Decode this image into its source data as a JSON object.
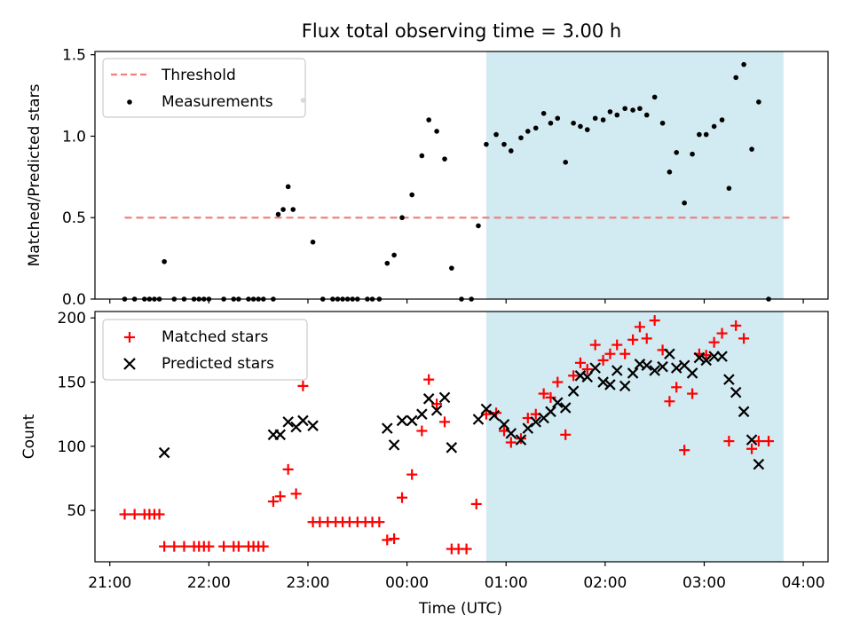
{
  "title": "Flux total observing time = 3.00 h",
  "colors": {
    "threshold": "#f08080",
    "measurement": "#000000",
    "matched": "#ff0000",
    "predicted": "#000000",
    "highlight": "#add8e6"
  },
  "chart_data": [
    {
      "type": "scatter",
      "ylabel": "Matched/Predicted stars",
      "xlabel": "",
      "xlim": [
        20.85,
        28.25
      ],
      "ylim": [
        0,
        1.52
      ],
      "yticks": [
        0.0,
        0.5,
        1.0,
        1.5
      ],
      "ytick_labels": [
        "0.0",
        "0.5",
        "1.0",
        "1.5"
      ],
      "highlight_span": [
        24.8,
        27.8
      ],
      "legend": {
        "position": "upper left",
        "entries": [
          "Threshold",
          "Measurements"
        ]
      },
      "threshold": {
        "name": "Threshold",
        "value": 0.5,
        "x_range": [
          21.15,
          27.9
        ]
      },
      "series": [
        {
          "name": "Measurements",
          "marker": "dot",
          "points": [
            [
              21.15,
              0
            ],
            [
              21.25,
              0
            ],
            [
              21.35,
              0
            ],
            [
              21.4,
              0
            ],
            [
              21.45,
              0
            ],
            [
              21.5,
              0
            ],
            [
              21.55,
              0.23
            ],
            [
              21.65,
              0
            ],
            [
              21.75,
              0
            ],
            [
              21.85,
              0
            ],
            [
              21.9,
              0
            ],
            [
              21.95,
              0
            ],
            [
              22.0,
              0
            ],
            [
              22.15,
              0
            ],
            [
              22.25,
              0
            ],
            [
              22.3,
              0
            ],
            [
              22.4,
              0
            ],
            [
              22.45,
              0
            ],
            [
              22.5,
              0
            ],
            [
              22.55,
              0
            ],
            [
              22.65,
              0
            ],
            [
              22.7,
              0.52
            ],
            [
              22.75,
              0.55
            ],
            [
              22.8,
              0.69
            ],
            [
              22.85,
              0.55
            ],
            [
              22.95,
              1.22
            ],
            [
              23.05,
              0.35
            ],
            [
              23.15,
              0
            ],
            [
              23.25,
              0
            ],
            [
              23.3,
              0
            ],
            [
              23.35,
              0
            ],
            [
              23.4,
              0
            ],
            [
              23.45,
              0
            ],
            [
              23.5,
              0
            ],
            [
              23.6,
              0
            ],
            [
              23.65,
              0
            ],
            [
              23.72,
              0
            ],
            [
              23.8,
              0.22
            ],
            [
              23.87,
              0.27
            ],
            [
              23.95,
              0.5
            ],
            [
              24.05,
              0.64
            ],
            [
              24.15,
              0.88
            ],
            [
              24.22,
              1.1
            ],
            [
              24.3,
              1.03
            ],
            [
              24.38,
              0.86
            ],
            [
              24.45,
              0.19
            ],
            [
              24.55,
              0
            ],
            [
              24.65,
              0
            ],
            [
              24.72,
              0.45
            ],
            [
              24.8,
              0.95
            ],
            [
              24.9,
              1.01
            ],
            [
              24.98,
              0.95
            ],
            [
              25.05,
              0.91
            ],
            [
              25.15,
              0.99
            ],
            [
              25.22,
              1.03
            ],
            [
              25.3,
              1.05
            ],
            [
              25.38,
              1.14
            ],
            [
              25.45,
              1.08
            ],
            [
              25.52,
              1.11
            ],
            [
              25.6,
              0.84
            ],
            [
              25.68,
              1.08
            ],
            [
              25.75,
              1.06
            ],
            [
              25.82,
              1.04
            ],
            [
              25.9,
              1.11
            ],
            [
              25.98,
              1.1
            ],
            [
              26.05,
              1.15
            ],
            [
              26.12,
              1.13
            ],
            [
              26.2,
              1.17
            ],
            [
              26.28,
              1.16
            ],
            [
              26.35,
              1.17
            ],
            [
              26.42,
              1.13
            ],
            [
              26.5,
              1.24
            ],
            [
              26.58,
              1.08
            ],
            [
              26.65,
              0.78
            ],
            [
              26.72,
              0.9
            ],
            [
              26.8,
              0.59
            ],
            [
              26.88,
              0.89
            ],
            [
              26.95,
              1.01
            ],
            [
              27.02,
              1.01
            ],
            [
              27.1,
              1.06
            ],
            [
              27.18,
              1.1
            ],
            [
              27.25,
              0.68
            ],
            [
              27.32,
              1.36
            ],
            [
              27.4,
              1.44
            ],
            [
              27.48,
              0.92
            ],
            [
              27.55,
              1.21
            ],
            [
              27.65,
              0.0
            ]
          ]
        }
      ]
    },
    {
      "type": "scatter",
      "ylabel": "Count",
      "xlabel": "Time (UTC)",
      "xlim": [
        20.85,
        28.25
      ],
      "ylim": [
        10,
        205
      ],
      "yticks": [
        50,
        100,
        150,
        200
      ],
      "ytick_labels": [
        "50",
        "100",
        "150",
        "200"
      ],
      "xticks": [
        21,
        22,
        23,
        24,
        25,
        26,
        27,
        28
      ],
      "xtick_labels": [
        "21:00",
        "22:00",
        "23:00",
        "00:00",
        "01:00",
        "02:00",
        "03:00",
        "04:00"
      ],
      "highlight_span": [
        24.8,
        27.8
      ],
      "legend": {
        "position": "upper left",
        "entries": [
          "Matched stars",
          "Predicted stars"
        ]
      },
      "series": [
        {
          "name": "Matched stars",
          "marker": "plus",
          "points": [
            [
              21.15,
              47
            ],
            [
              21.25,
              47
            ],
            [
              21.35,
              47
            ],
            [
              21.4,
              47
            ],
            [
              21.45,
              47
            ],
            [
              21.5,
              47
            ],
            [
              21.55,
              22
            ],
            [
              21.65,
              22
            ],
            [
              21.75,
              22
            ],
            [
              21.85,
              22
            ],
            [
              21.9,
              22
            ],
            [
              21.95,
              22
            ],
            [
              22.0,
              22
            ],
            [
              22.15,
              22
            ],
            [
              22.25,
              22
            ],
            [
              22.3,
              22
            ],
            [
              22.4,
              22
            ],
            [
              22.45,
              22
            ],
            [
              22.5,
              22
            ],
            [
              22.55,
              22
            ],
            [
              22.65,
              57
            ],
            [
              22.72,
              61
            ],
            [
              22.8,
              82
            ],
            [
              22.88,
              63
            ],
            [
              22.95,
              147
            ],
            [
              23.05,
              41
            ],
            [
              23.12,
              41
            ],
            [
              23.2,
              41
            ],
            [
              23.28,
              41
            ],
            [
              23.35,
              41
            ],
            [
              23.42,
              41
            ],
            [
              23.5,
              41
            ],
            [
              23.58,
              41
            ],
            [
              23.65,
              41
            ],
            [
              23.72,
              41
            ],
            [
              23.8,
              27
            ],
            [
              23.87,
              28
            ],
            [
              23.95,
              60
            ],
            [
              24.05,
              78
            ],
            [
              24.15,
              112
            ],
            [
              24.22,
              152
            ],
            [
              24.3,
              133
            ],
            [
              24.38,
              119
            ],
            [
              24.45,
              20
            ],
            [
              24.52,
              20
            ],
            [
              24.6,
              20
            ],
            [
              24.7,
              55
            ],
            [
              24.8,
              125
            ],
            [
              24.9,
              126
            ],
            [
              24.98,
              112
            ],
            [
              25.05,
              103
            ],
            [
              25.15,
              106
            ],
            [
              25.22,
              122
            ],
            [
              25.3,
              125
            ],
            [
              25.38,
              141
            ],
            [
              25.45,
              138
            ],
            [
              25.52,
              150
            ],
            [
              25.6,
              109
            ],
            [
              25.68,
              155
            ],
            [
              25.75,
              165
            ],
            [
              25.82,
              160
            ],
            [
              25.9,
              179
            ],
            [
              25.98,
              167
            ],
            [
              26.05,
              172
            ],
            [
              26.12,
              179
            ],
            [
              26.2,
              172
            ],
            [
              26.28,
              183
            ],
            [
              26.35,
              193
            ],
            [
              26.42,
              184
            ],
            [
              26.5,
              198
            ],
            [
              26.58,
              175
            ],
            [
              26.65,
              135
            ],
            [
              26.72,
              146
            ],
            [
              26.8,
              97
            ],
            [
              26.88,
              141
            ],
            [
              26.95,
              172
            ],
            [
              27.02,
              171
            ],
            [
              27.1,
              181
            ],
            [
              27.18,
              188
            ],
            [
              27.25,
              104
            ],
            [
              27.32,
              194
            ],
            [
              27.4,
              184
            ],
            [
              27.48,
              98
            ],
            [
              27.55,
              104
            ],
            [
              27.65,
              104
            ]
          ]
        },
        {
          "name": "Predicted stars",
          "marker": "x",
          "points": [
            [
              21.55,
              95
            ],
            [
              22.65,
              109
            ],
            [
              22.72,
              109
            ],
            [
              22.8,
              119
            ],
            [
              22.88,
              115
            ],
            [
              22.95,
              120
            ],
            [
              23.05,
              116
            ],
            [
              23.8,
              114
            ],
            [
              23.87,
              101
            ],
            [
              23.95,
              120
            ],
            [
              24.05,
              120
            ],
            [
              24.15,
              125
            ],
            [
              24.22,
              137
            ],
            [
              24.3,
              128
            ],
            [
              24.38,
              138
            ],
            [
              24.45,
              99
            ],
            [
              24.72,
              121
            ],
            [
              24.8,
              129
            ],
            [
              24.88,
              124
            ],
            [
              24.98,
              117
            ],
            [
              25.05,
              110
            ],
            [
              25.15,
              105
            ],
            [
              25.22,
              114
            ],
            [
              25.3,
              119
            ],
            [
              25.38,
              122
            ],
            [
              25.45,
              127
            ],
            [
              25.52,
              134
            ],
            [
              25.6,
              130
            ],
            [
              25.68,
              143
            ],
            [
              25.75,
              155
            ],
            [
              25.82,
              154
            ],
            [
              25.9,
              161
            ],
            [
              25.98,
              150
            ],
            [
              26.05,
              148
            ],
            [
              26.12,
              159
            ],
            [
              26.2,
              147
            ],
            [
              26.28,
              157
            ],
            [
              26.35,
              164
            ],
            [
              26.42,
              163
            ],
            [
              26.5,
              159
            ],
            [
              26.58,
              162
            ],
            [
              26.65,
              172
            ],
            [
              26.72,
              161
            ],
            [
              26.8,
              163
            ],
            [
              26.88,
              157
            ],
            [
              26.95,
              169
            ],
            [
              27.02,
              167
            ],
            [
              27.1,
              170
            ],
            [
              27.18,
              170
            ],
            [
              27.25,
              152
            ],
            [
              27.32,
              142
            ],
            [
              27.4,
              127
            ],
            [
              27.48,
              105
            ],
            [
              27.55,
              86
            ]
          ]
        }
      ]
    }
  ]
}
